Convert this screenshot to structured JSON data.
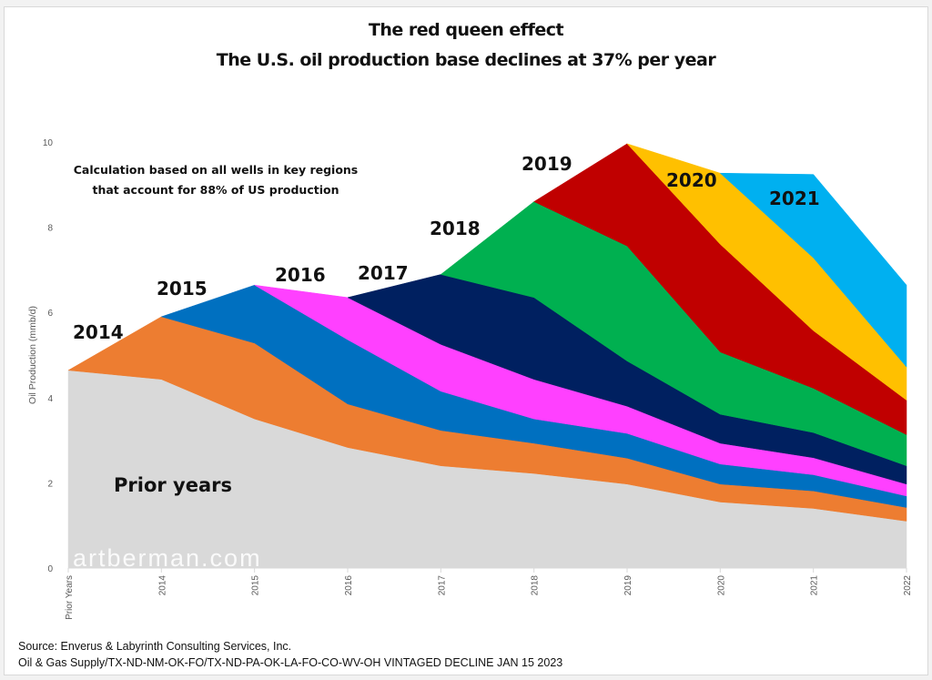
{
  "chart_data": {
    "type": "area",
    "stacked": true,
    "title": "The red queen effect",
    "subtitle": "The U.S. oil production base declines at 37% per year",
    "xlabel": "",
    "ylabel": "Oil Production (mmb/d)",
    "ylim": [
      0,
      10
    ],
    "yticks": [
      0,
      2,
      4,
      6,
      8,
      10
    ],
    "grid": false,
    "legend": "none (inline labels)",
    "categories": [
      "Prior Years",
      "2014",
      "2015",
      "2016",
      "2017",
      "2018",
      "2019",
      "2020",
      "2021",
      "2022"
    ],
    "series": [
      {
        "name": "Prior years",
        "color": "#d9d9d9",
        "values": [
          4.64,
          4.43,
          3.5,
          2.83,
          2.4,
          2.22,
          1.97,
          1.55,
          1.4,
          1.1
        ]
      },
      {
        "name": "2014",
        "color": "#ed7d31",
        "values": [
          0,
          1.47,
          1.78,
          1.02,
          0.83,
          0.71,
          0.61,
          0.42,
          0.41,
          0.32
        ]
      },
      {
        "name": "2015",
        "color": "#0070c0",
        "values": [
          0,
          0,
          1.36,
          1.51,
          0.92,
          0.57,
          0.58,
          0.47,
          0.38,
          0.27
        ]
      },
      {
        "name": "2016",
        "color": "#ff40ff",
        "values": [
          0,
          0,
          0,
          0.99,
          1.1,
          0.93,
          0.64,
          0.49,
          0.4,
          0.28
        ]
      },
      {
        "name": "2017",
        "color": "#002060",
        "values": [
          0,
          0,
          0,
          0,
          1.64,
          1.92,
          1.06,
          0.68,
          0.59,
          0.43
        ]
      },
      {
        "name": "2018",
        "color": "#00b050",
        "values": [
          0,
          0,
          0,
          0,
          0,
          2.25,
          2.7,
          1.46,
          1.04,
          0.73
        ]
      },
      {
        "name": "2019",
        "color": "#c00000",
        "values": [
          0,
          0,
          0,
          0,
          0,
          0,
          2.4,
          2.53,
          1.35,
          0.81
        ]
      },
      {
        "name": "2020",
        "color": "#ffc000",
        "values": [
          0,
          0,
          0,
          0,
          0,
          0,
          0,
          1.67,
          1.71,
          0.78
        ]
      },
      {
        "name": "2021",
        "color": "#00b0f0",
        "values": [
          0,
          0,
          0,
          0,
          0,
          0,
          0,
          0,
          1.96,
          1.92
        ]
      }
    ],
    "inline_labels": [
      {
        "text": "Prior years",
        "series": "Prior years"
      },
      {
        "text": "2014",
        "series": "2014"
      },
      {
        "text": "2015",
        "series": "2015"
      },
      {
        "text": "2016",
        "series": "2016"
      },
      {
        "text": "2017",
        "series": "2017"
      },
      {
        "text": "2018",
        "series": "2018"
      },
      {
        "text": "2019",
        "series": "2019"
      },
      {
        "text": "2020",
        "series": "2020"
      },
      {
        "text": "2021",
        "series": "2021"
      }
    ],
    "annotation": [
      "Calculation based on all wells in key regions",
      "that account for 88% of US production"
    ],
    "watermark": "artberman.com"
  },
  "footer": {
    "source_line1": "Source: Enverus & Labyrinth Consulting Services, Inc.",
    "source_line2": "Oil & Gas Supply/TX-ND-NM-OK-FO/TX-ND-PA-OK-LA-FO-CO-WV-OH VINTAGED DECLINE JAN 15 2023"
  }
}
